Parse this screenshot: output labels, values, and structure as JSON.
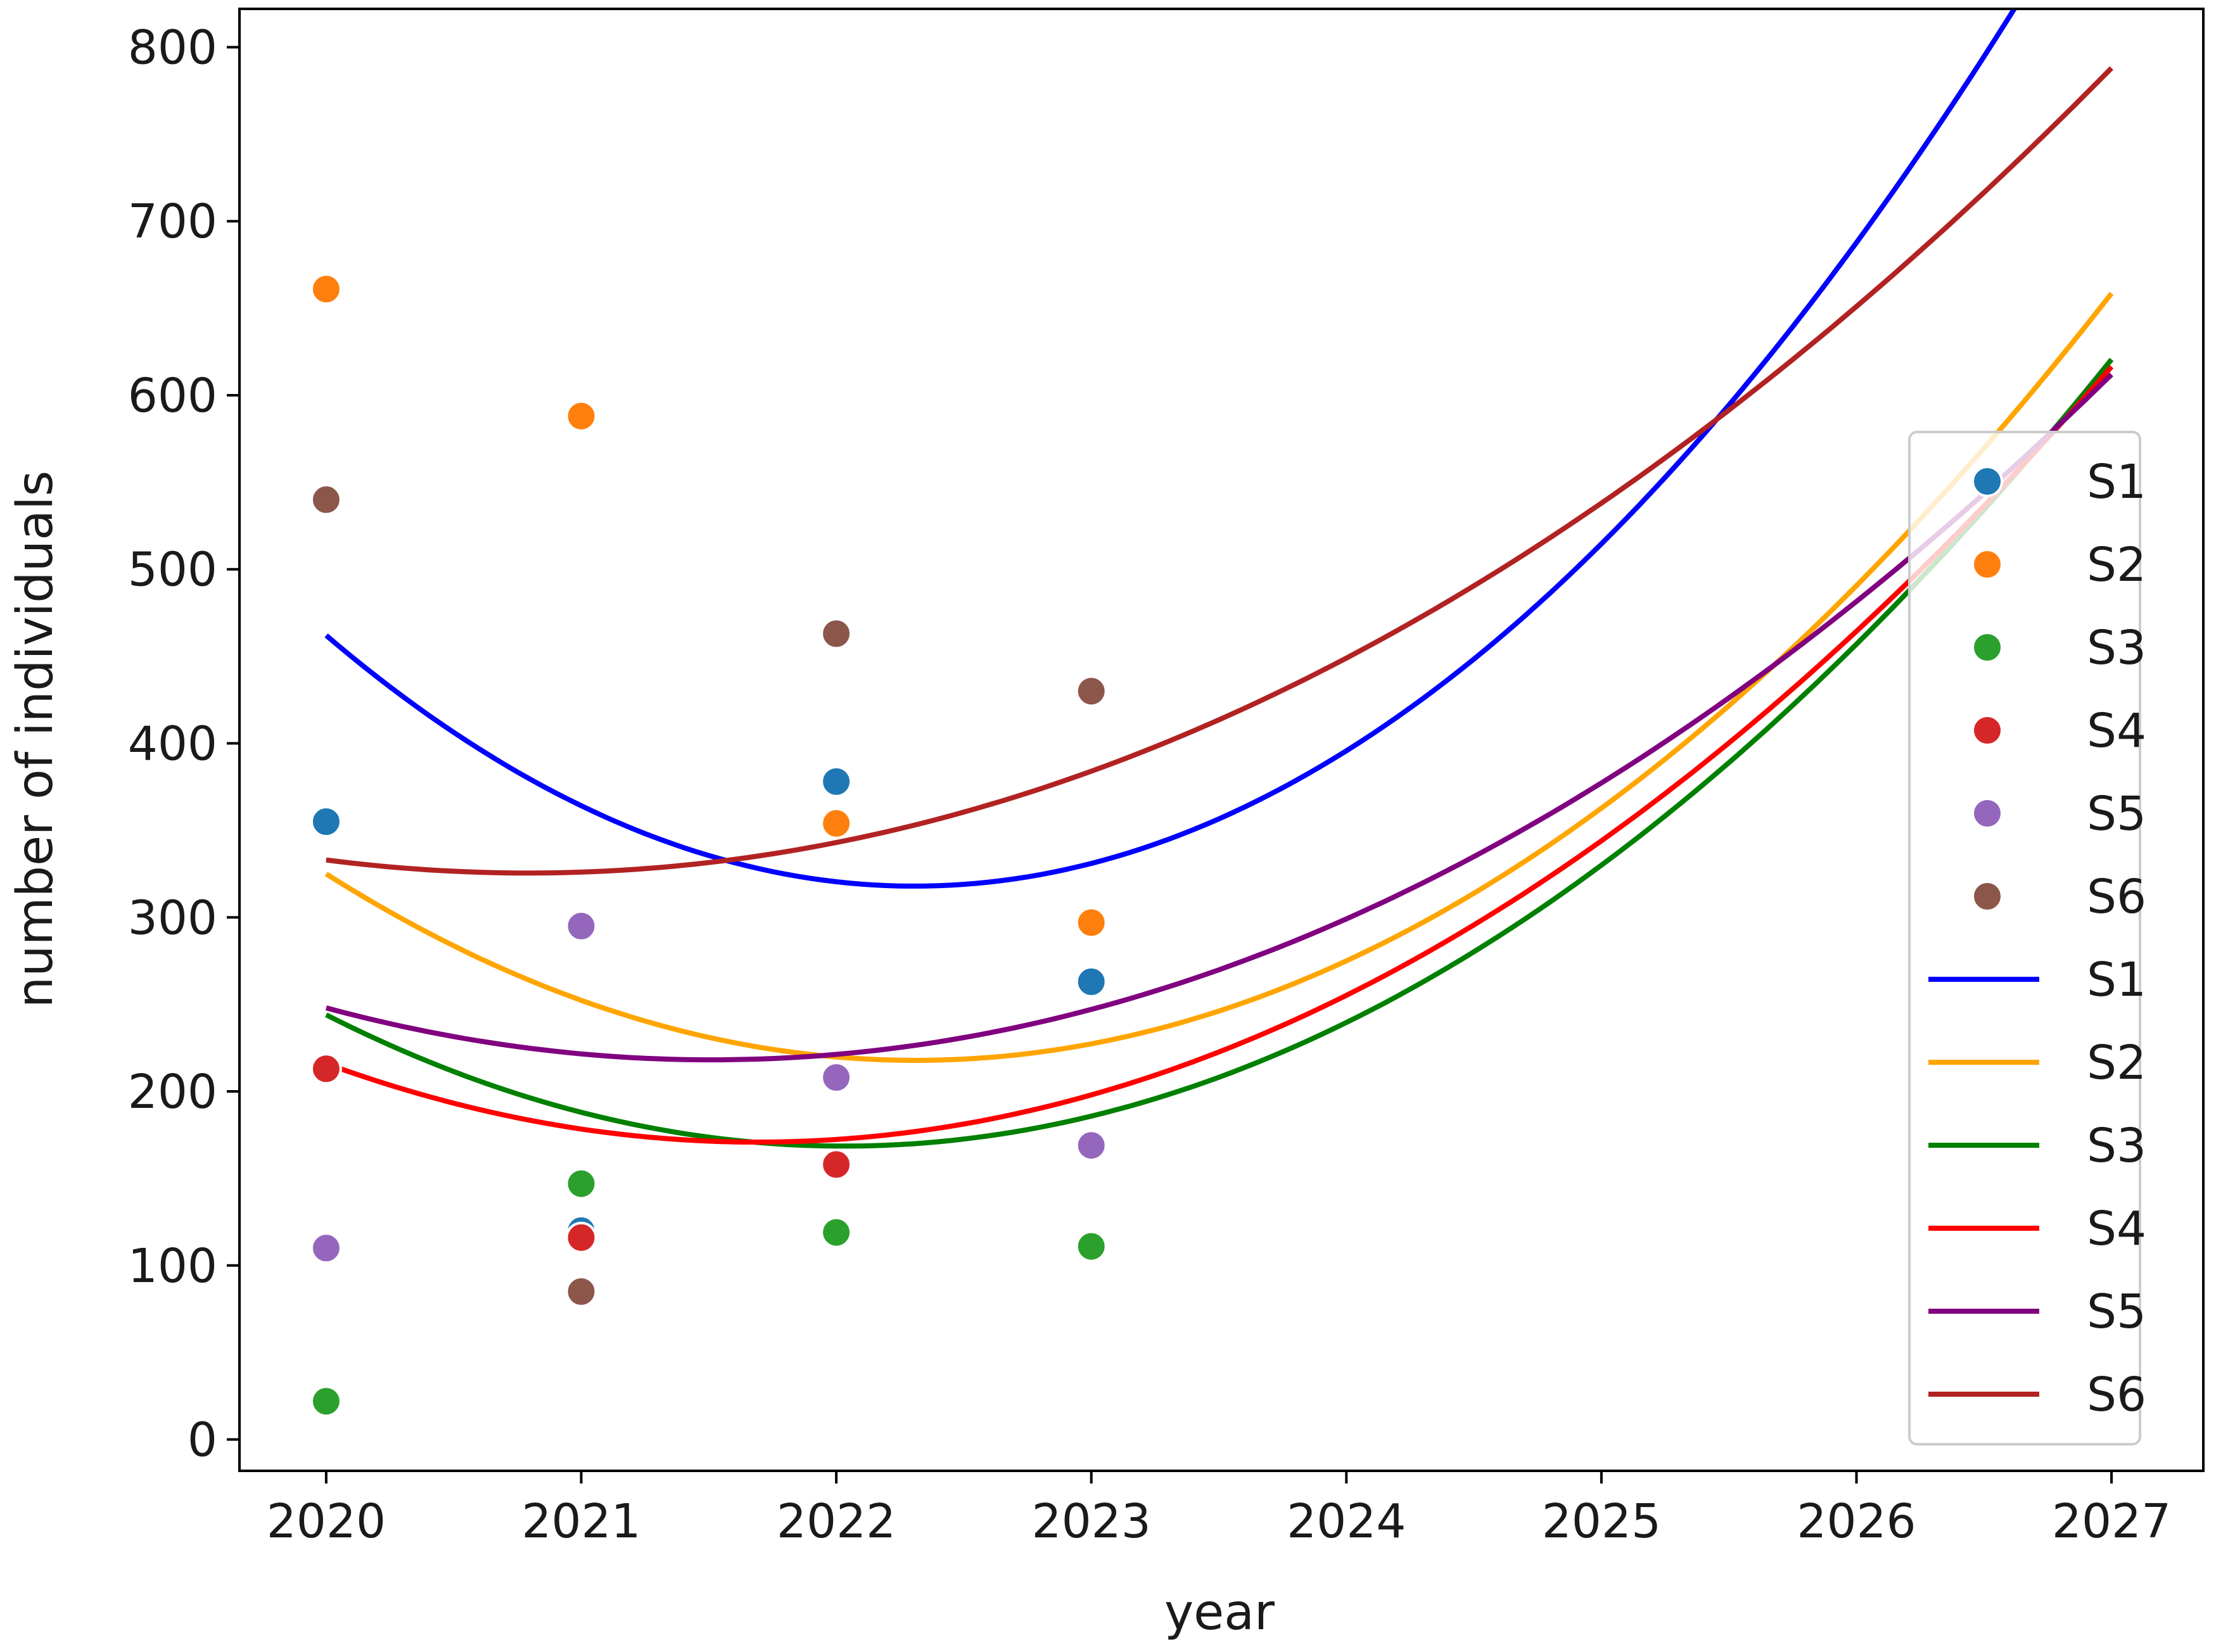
{
  "chart_data": {
    "type": "scatter",
    "xlabel": "year",
    "ylabel": "number of individuals",
    "xlim": [
      2019.66,
      2027.36
    ],
    "ylim": [
      -18,
      822
    ],
    "x_ticks": [
      2020,
      2021,
      2022,
      2023,
      2024,
      2025,
      2026,
      2027
    ],
    "y_ticks": [
      0,
      100,
      200,
      300,
      400,
      500,
      600,
      700,
      800
    ],
    "grid": false,
    "legend_position": "right",
    "scatter_series": [
      {
        "name": "S1",
        "color": "#1f77b4",
        "points": [
          [
            2020,
            355
          ],
          [
            2021,
            120
          ],
          [
            2022,
            378
          ],
          [
            2023,
            263
          ]
        ]
      },
      {
        "name": "S2",
        "color": "#ff7f0e",
        "points": [
          [
            2020,
            661
          ],
          [
            2021,
            588
          ],
          [
            2022,
            354
          ],
          [
            2023,
            297
          ]
        ]
      },
      {
        "name": "S3",
        "color": "#2ca02c",
        "points": [
          [
            2020,
            22
          ],
          [
            2021,
            147
          ],
          [
            2022,
            119
          ],
          [
            2023,
            111
          ]
        ]
      },
      {
        "name": "S4",
        "color": "#d62728",
        "points": [
          [
            2020,
            213
          ],
          [
            2021,
            116
          ],
          [
            2022,
            158
          ],
          [
            2023,
            169
          ]
        ]
      },
      {
        "name": "S5",
        "color": "#9467bd",
        "points": [
          [
            2020,
            110
          ],
          [
            2021,
            295
          ],
          [
            2022,
            208
          ],
          [
            2023,
            169
          ]
        ]
      },
      {
        "name": "S6",
        "color": "#8c564b",
        "points": [
          [
            2020,
            540
          ],
          [
            2021,
            85
          ],
          [
            2022,
            463
          ],
          [
            2023,
            430
          ]
        ]
      }
    ],
    "fit_series": [
      {
        "name": "S1",
        "color": "#0000ff",
        "x_range": [
          2020,
          2027
        ],
        "coefficients": [
          462,
          -124.95,
          27.095
        ]
      },
      {
        "name": "S2",
        "color": "#ffa500",
        "x_range": [
          2020,
          2027
        ],
        "coefficients": [
          325,
          -92.7,
          20.05
        ]
      },
      {
        "name": "S3",
        "color": "#008000",
        "x_range": [
          2020,
          2027
        ],
        "coefficients": [
          244,
          -74.3,
          18.3
        ]
      },
      {
        "name": "S4",
        "color": "#ff0000",
        "x_range": [
          2020,
          2027
        ],
        "coefficients": [
          216,
          -53.4,
          15.8
        ]
      },
      {
        "name": "S5",
        "color": "#800080",
        "x_range": [
          2020,
          2027
        ],
        "coefficients": [
          248,
          -39.5,
          13.07
        ]
      },
      {
        "name": "S6",
        "color": "#b22222",
        "x_range": [
          2020,
          2027
        ],
        "coefficients": [
          333,
          -19.0,
          12.0
        ]
      }
    ],
    "fit_note": "",
    "legend": [
      "S1",
      "S2",
      "S3",
      "S4",
      "S5",
      "S6",
      "S1",
      "S2",
      "S3",
      "S4",
      "S5",
      "S6"
    ]
  }
}
